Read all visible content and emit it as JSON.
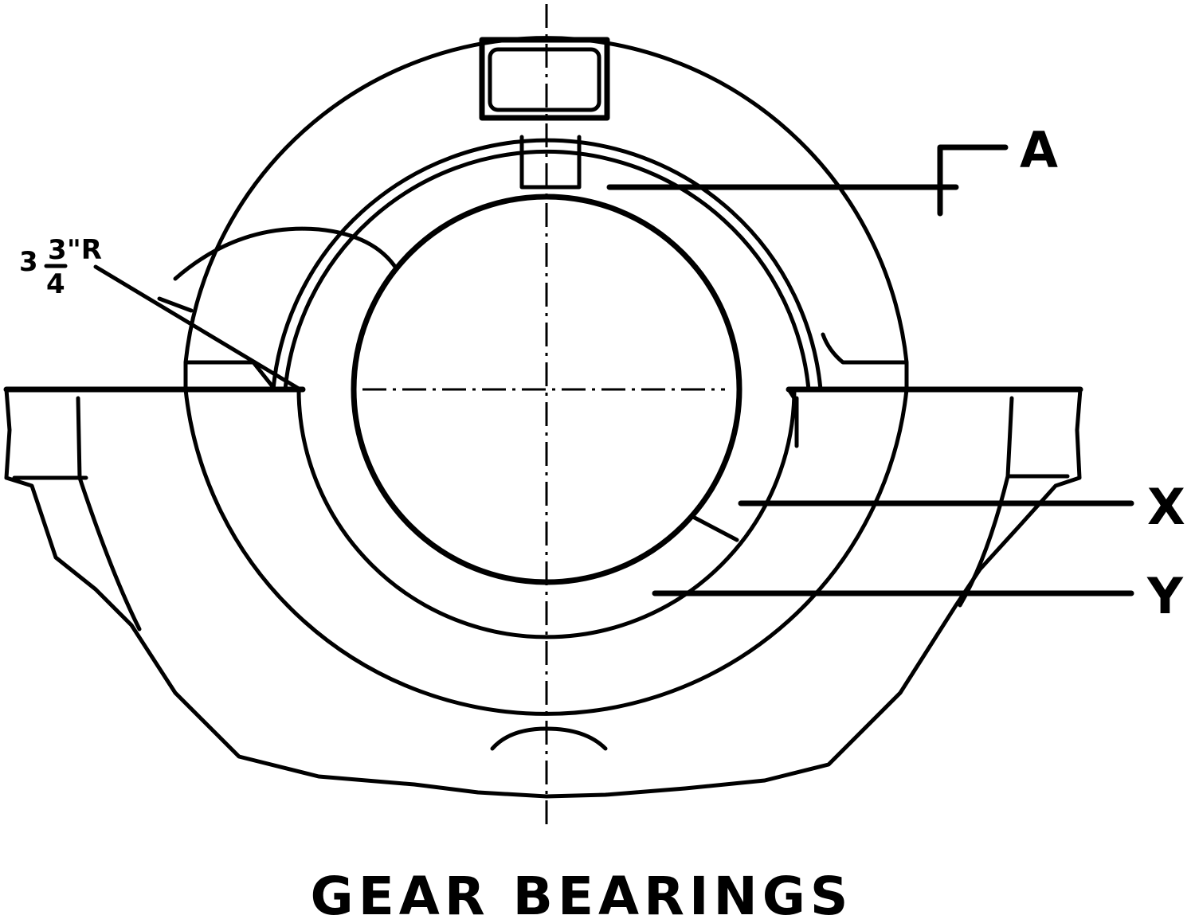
{
  "diagram": {
    "labels": {
      "a": "A",
      "x": "X",
      "y": "Y",
      "radius_whole": "3",
      "radius_num": "3",
      "radius_den": "4",
      "radius_unit": "\"R"
    },
    "caption": "GEAR BEARINGS"
  }
}
